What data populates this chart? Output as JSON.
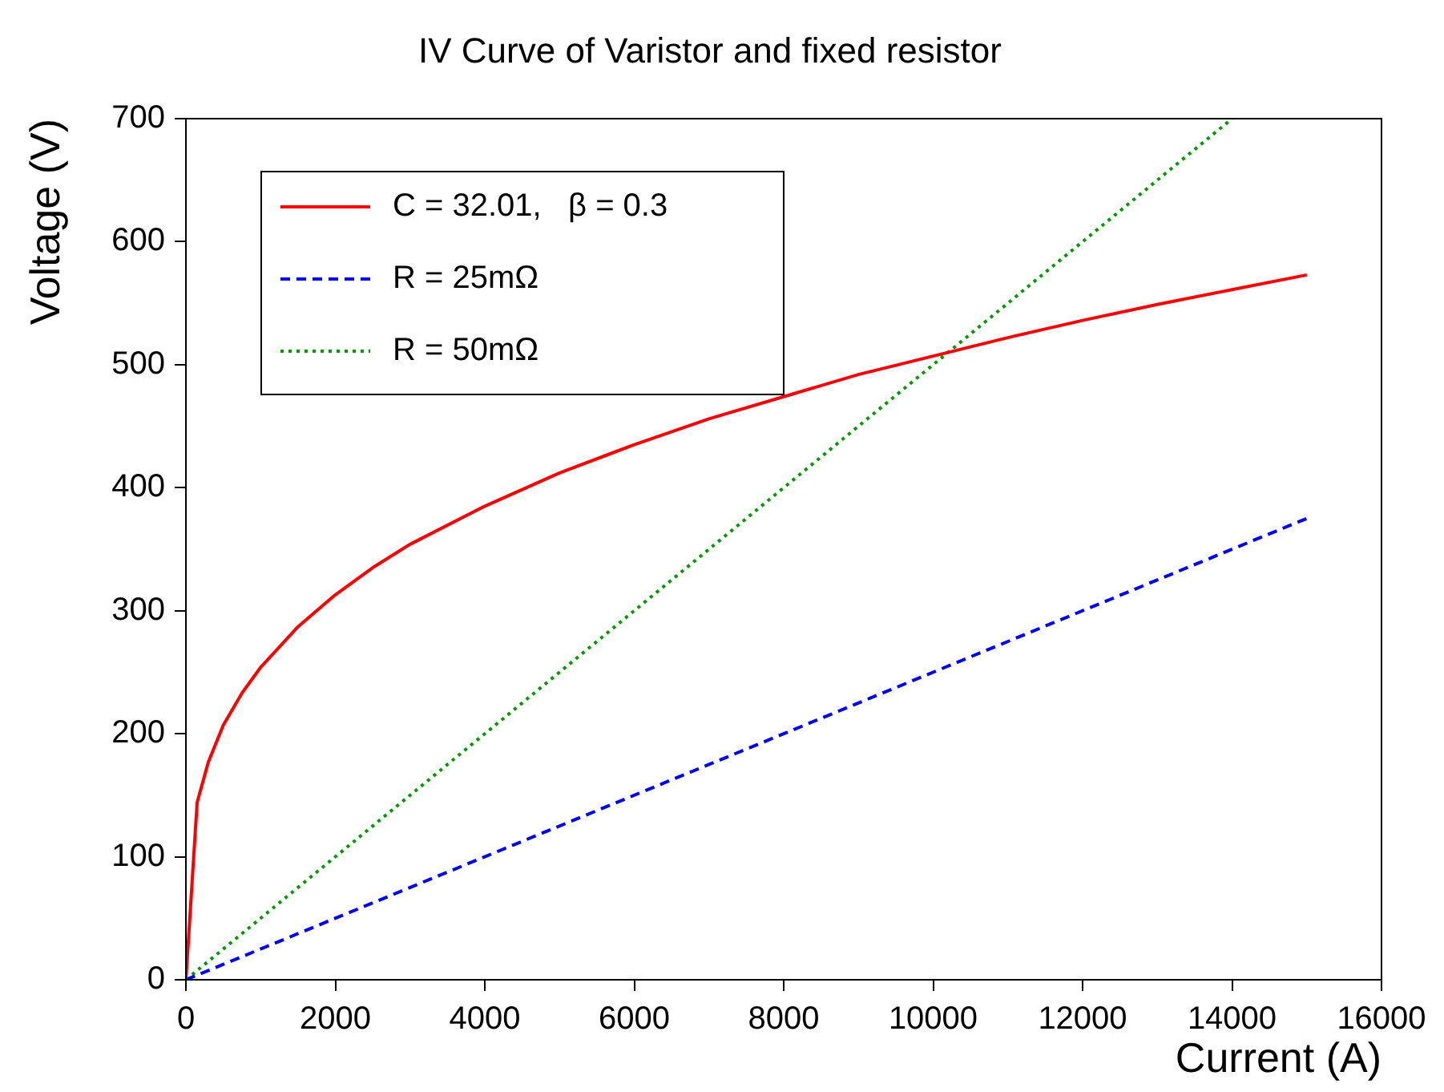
{
  "chart_data": {
    "type": "line",
    "title": "IV Curve of Varistor and fixed resistor",
    "xlabel": "Current (A)",
    "ylabel": "Voltage (V)",
    "xlim": [
      0,
      16000
    ],
    "xticks": [
      0,
      2000,
      4000,
      6000,
      8000,
      10000,
      12000,
      14000,
      16000
    ],
    "ylim": [
      0,
      700
    ],
    "yticks": [
      0,
      100,
      200,
      300,
      400,
      500,
      600,
      700
    ],
    "grid": false,
    "legend": "top left",
    "marker": "none",
    "series": [
      {
        "name": "C = 32.01,   β = 0.3",
        "color": "#ff0000",
        "line_style": "solid",
        "x": [
          0,
          150,
          300,
          500,
          750,
          1000,
          1500,
          2000,
          2500,
          3000,
          4000,
          5000,
          6000,
          7000,
          8000,
          9000,
          10000,
          11000,
          12000,
          13000,
          14000,
          15000
        ],
        "values": [
          0,
          144,
          177,
          207,
          233,
          254,
          287,
          313,
          335,
          354,
          385,
          412,
          435,
          456,
          474,
          492,
          507,
          522,
          536,
          549,
          561,
          573
        ]
      },
      {
        "name": "R = 25mΩ",
        "color": "#0000ff",
        "line_style": "dashed",
        "x": [
          0,
          15000
        ],
        "values": [
          0,
          375
        ]
      },
      {
        "name": "R = 50mΩ",
        "color": "#009900",
        "line_style": "dotted",
        "x": [
          0,
          14000
        ],
        "values": [
          0,
          700
        ]
      }
    ]
  }
}
